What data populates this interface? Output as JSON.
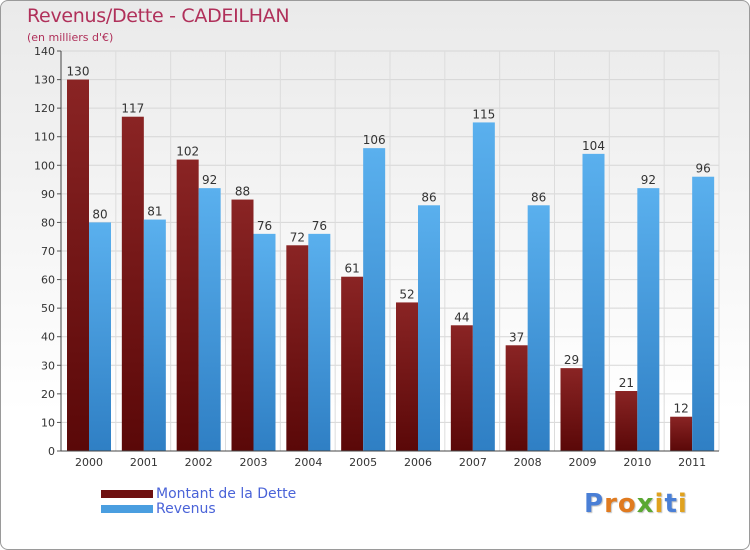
{
  "chart_data": {
    "type": "bar",
    "title": "Revenus/Dette - CADEILHAN",
    "subtitle": "(en milliers d'€)",
    "categories": [
      "2000",
      "2001",
      "2002",
      "2003",
      "2004",
      "2005",
      "2006",
      "2007",
      "2008",
      "2009",
      "2010",
      "2011"
    ],
    "series": [
      {
        "name": "Montant de la Dette",
        "values": [
          130,
          117,
          102,
          88,
          72,
          61,
          52,
          44,
          37,
          29,
          21,
          12
        ],
        "color": "#7a1515"
      },
      {
        "name": "Revenus",
        "values": [
          80,
          81,
          92,
          76,
          76,
          106,
          86,
          115,
          86,
          104,
          92,
          96
        ],
        "color": "#4a9ee0"
      }
    ],
    "ylim": [
      0,
      140
    ],
    "yticks": [
      0,
      10,
      20,
      30,
      40,
      50,
      60,
      70,
      80,
      90,
      100,
      110,
      120,
      130,
      140
    ],
    "grid": true,
    "legend_position": "bottom-left"
  },
  "logo": {
    "text": "Proxiti",
    "letters": [
      "P",
      "r",
      "o",
      "x",
      "i",
      "t",
      "i"
    ],
    "colors": [
      "#4a7fd6",
      "#e07a1f",
      "#e07a1f",
      "#5aa832",
      "#e0a21f",
      "#4a7fd6",
      "#e0a21f"
    ]
  }
}
